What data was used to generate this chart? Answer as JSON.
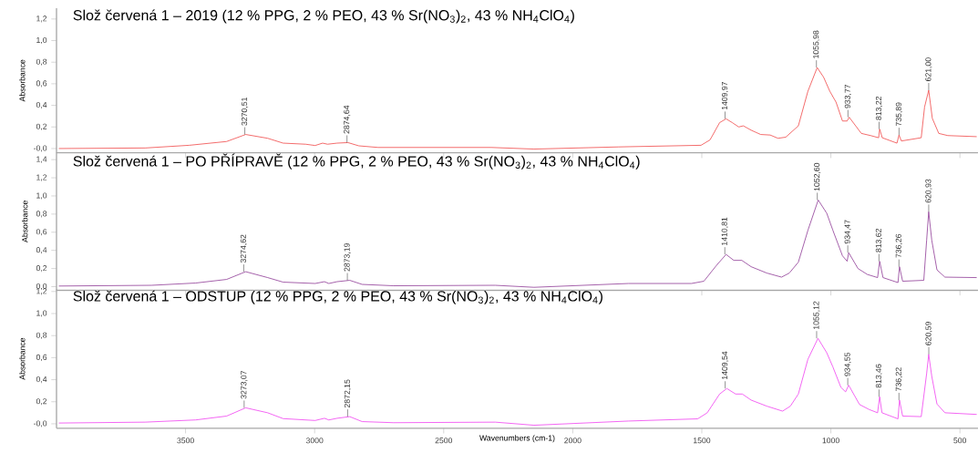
{
  "chart_data": [
    {
      "type": "line",
      "title": "Slož červená 1 – 2019 (12 % PPG, 2 % PEO, 43 % Sr(NO$_{3}$)$_{2}$, 43 % NH$_{4}$ClO$_{4}$)",
      "ylabel": "Absorbance",
      "xlim": [
        4000,
        430
      ],
      "ylim": [
        -0.04,
        1.3
      ],
      "xticks": [
        3500,
        3000,
        2500,
        2000,
        1500,
        1000,
        500
      ],
      "yticks": [
        {
          "value": 0,
          "label": "-0,0"
        },
        {
          "value": 0.2,
          "label": "0,2"
        },
        {
          "value": 0.4,
          "label": "0,4"
        },
        {
          "value": 0.6,
          "label": "0,6"
        },
        {
          "value": 0.8,
          "label": "0,8"
        },
        {
          "value": 1.0,
          "label": "1,0"
        },
        {
          "value": 1.2,
          "label": "1,2"
        }
      ],
      "tick_labels": "y",
      "x": [
        3991,
        3657,
        3486,
        3341,
        3267,
        3182,
        3122,
        3035,
        2998,
        2969,
        2950,
        2913,
        2871,
        2829,
        2754,
        2316,
        2150,
        1822,
        1503,
        1468,
        1431,
        1406,
        1382,
        1357,
        1339,
        1309,
        1272,
        1235,
        1205,
        1175,
        1126,
        1089,
        1053,
        1028,
        1004,
        980,
        955,
        937,
        929,
        882,
        846,
        815,
        811,
        801,
        744,
        736,
        727,
        650,
        637,
        621,
        607,
        582,
        547,
        435
      ],
      "series": [
        {
          "color": "#f04848",
          "values": [
            0.0,
            0.005,
            0.03,
            0.065,
            0.13,
            0.095,
            0.05,
            0.04,
            0.028,
            0.05,
            0.04,
            0.05,
            0.055,
            0.025,
            0.01,
            0.01,
            -0.005,
            0.015,
            0.03,
            0.08,
            0.24,
            0.275,
            0.24,
            0.2,
            0.21,
            0.17,
            0.13,
            0.125,
            0.095,
            0.105,
            0.21,
            0.53,
            0.75,
            0.66,
            0.53,
            0.43,
            0.255,
            0.255,
            0.29,
            0.14,
            0.12,
            0.1,
            0.18,
            0.1,
            0.05,
            0.125,
            0.07,
            0.1,
            0.385,
            0.54,
            0.28,
            0.14,
            0.12,
            0.11
          ]
        }
      ],
      "annotations": [
        {
          "text": "3270,51",
          "x": 3270.51,
          "y": 0.13
        },
        {
          "text": "2874,64",
          "x": 2874.64,
          "y": 0.055
        },
        {
          "text": "1409,97",
          "x": 1409.97,
          "y": 0.275
        },
        {
          "text": "1055,98",
          "x": 1055.98,
          "y": 0.75
        },
        {
          "text": "933,77",
          "x": 933.77,
          "y": 0.29
        },
        {
          "text": "813,22",
          "x": 813.22,
          "y": 0.18
        },
        {
          "text": "735,89",
          "x": 735.89,
          "y": 0.125
        },
        {
          "text": "621,00",
          "x": 621.0,
          "y": 0.54
        }
      ]
    },
    {
      "type": "line",
      "title": "Slož červená 1 – PO PŘÍPRAVĚ (12 % PPG, 2 % PEO, 43 % Sr(NO$_{3}$)$_{2}$, 43 % NH$_{4}$ClO$_{4}$)",
      "ylabel": "Absorbance",
      "xlim": [
        4000,
        430
      ],
      "ylim": [
        -0.04,
        1.48
      ],
      "xticks": [
        3500,
        3000,
        2500,
        2000,
        1500,
        1000,
        500
      ],
      "yticks": [
        {
          "value": 0,
          "label": "0,0"
        },
        {
          "value": 0.2,
          "label": "0,2"
        },
        {
          "value": 0.4,
          "label": "0,4"
        },
        {
          "value": 0.6,
          "label": "0,6"
        },
        {
          "value": 0.8,
          "label": "0,8"
        },
        {
          "value": 1.0,
          "label": "1,0"
        },
        {
          "value": 1.2,
          "label": "1,2"
        },
        {
          "value": 1.4,
          "label": "1,4"
        }
      ],
      "tick_labels": "y",
      "x": [
        3991,
        3632,
        3461,
        3341,
        3267,
        3182,
        3122,
        2998,
        2962,
        2945,
        2913,
        2864,
        2816,
        2694,
        2300,
        2150,
        1784,
        1540,
        1492,
        1443,
        1406,
        1376,
        1345,
        1309,
        1248,
        1191,
        1161,
        1126,
        1089,
        1049,
        1016,
        992,
        955,
        937,
        931,
        895,
        859,
        819,
        811,
        798,
        740,
        734,
        722,
        640,
        629,
        621,
        609,
        589,
        558,
        435
      ],
      "series": [
        {
          "color": "#8e3a96",
          "values": [
            0.007,
            0.015,
            0.04,
            0.08,
            0.165,
            0.1,
            0.05,
            0.035,
            0.055,
            0.035,
            0.055,
            0.07,
            0.025,
            0.01,
            0.015,
            -0.007,
            0.035,
            0.035,
            0.06,
            0.235,
            0.355,
            0.29,
            0.29,
            0.22,
            0.15,
            0.105,
            0.15,
            0.27,
            0.62,
            0.955,
            0.81,
            0.62,
            0.34,
            0.28,
            0.375,
            0.2,
            0.135,
            0.1,
            0.28,
            0.1,
            0.045,
            0.22,
            0.06,
            0.07,
            0.51,
            0.825,
            0.51,
            0.185,
            0.105,
            0.1
          ]
        }
      ],
      "annotations": [
        {
          "text": "3274,62",
          "x": 3274.62,
          "y": 0.165
        },
        {
          "text": "2873,19",
          "x": 2873.19,
          "y": 0.07
        },
        {
          "text": "1410,81",
          "x": 1410.81,
          "y": 0.355
        },
        {
          "text": "1052,60",
          "x": 1052.6,
          "y": 0.955
        },
        {
          "text": "934,47",
          "x": 934.47,
          "y": 0.375
        },
        {
          "text": "813,62",
          "x": 813.62,
          "y": 0.28
        },
        {
          "text": "736,26",
          "x": 736.26,
          "y": 0.22
        },
        {
          "text": "620,93",
          "x": 620.93,
          "y": 0.825
        }
      ]
    },
    {
      "type": "line",
      "title": "Slož červená 1 – ODSTUP (12 % PPG, 2 % PEO, 43 % Sr(NO$_{3}$)$_{2}$, 43 % NH$_{4}$ClO$_{4}$)",
      "ylabel": "Absorbance",
      "xlabel": "Wavenumbers (cm-1)",
      "xlim": [
        4000,
        430
      ],
      "ylim": [
        -0.04,
        1.22
      ],
      "xticks": [
        3500,
        3000,
        2500,
        2000,
        1500,
        1000,
        500
      ],
      "yticks": [
        {
          "value": 0,
          "label": "-0,0"
        },
        {
          "value": 0.2,
          "label": "0,2"
        },
        {
          "value": 0.4,
          "label": "0,4"
        },
        {
          "value": 0.6,
          "label": "0,6"
        },
        {
          "value": 0.8,
          "label": "0,8"
        },
        {
          "value": 1.0,
          "label": "1,0"
        },
        {
          "value": 1.2,
          "label": "1,2"
        }
      ],
      "x": [
        3991,
        3657,
        3461,
        3341,
        3267,
        3182,
        3122,
        2998,
        2962,
        2945,
        2913,
        2864,
        2816,
        2694,
        2300,
        2150,
        1784,
        1516,
        1479,
        1431,
        1403,
        1369,
        1343,
        1309,
        1248,
        1187,
        1157,
        1126,
        1089,
        1050,
        1016,
        992,
        961,
        943,
        931,
        889,
        852,
        819,
        811,
        802,
        740,
        734,
        722,
        650,
        629,
        621,
        609,
        589,
        558,
        435
      ],
      "series": [
        {
          "color": "#f040f0",
          "values": [
            0.007,
            0.015,
            0.035,
            0.07,
            0.145,
            0.1,
            0.047,
            0.03,
            0.05,
            0.035,
            0.05,
            0.065,
            0.02,
            0.01,
            0.015,
            -0.013,
            0.025,
            0.045,
            0.1,
            0.27,
            0.32,
            0.27,
            0.27,
            0.215,
            0.16,
            0.115,
            0.16,
            0.27,
            0.585,
            0.775,
            0.645,
            0.515,
            0.33,
            0.29,
            0.35,
            0.175,
            0.13,
            0.1,
            0.245,
            0.1,
            0.045,
            0.215,
            0.07,
            0.065,
            0.455,
            0.63,
            0.43,
            0.18,
            0.1,
            0.085
          ]
        }
      ],
      "annotations": [
        {
          "text": "3273,07",
          "x": 3273.07,
          "y": 0.145
        },
        {
          "text": "2872,15",
          "x": 2872.15,
          "y": 0.065
        },
        {
          "text": "1409,54",
          "x": 1409.54,
          "y": 0.32
        },
        {
          "text": "1055,12",
          "x": 1055.12,
          "y": 0.775
        },
        {
          "text": "934,55",
          "x": 934.55,
          "y": 0.35
        },
        {
          "text": "813,46",
          "x": 813.46,
          "y": 0.245
        },
        {
          "text": "736,22",
          "x": 736.22,
          "y": 0.215
        },
        {
          "text": "620,59",
          "x": 620.59,
          "y": 0.63
        }
      ]
    }
  ]
}
